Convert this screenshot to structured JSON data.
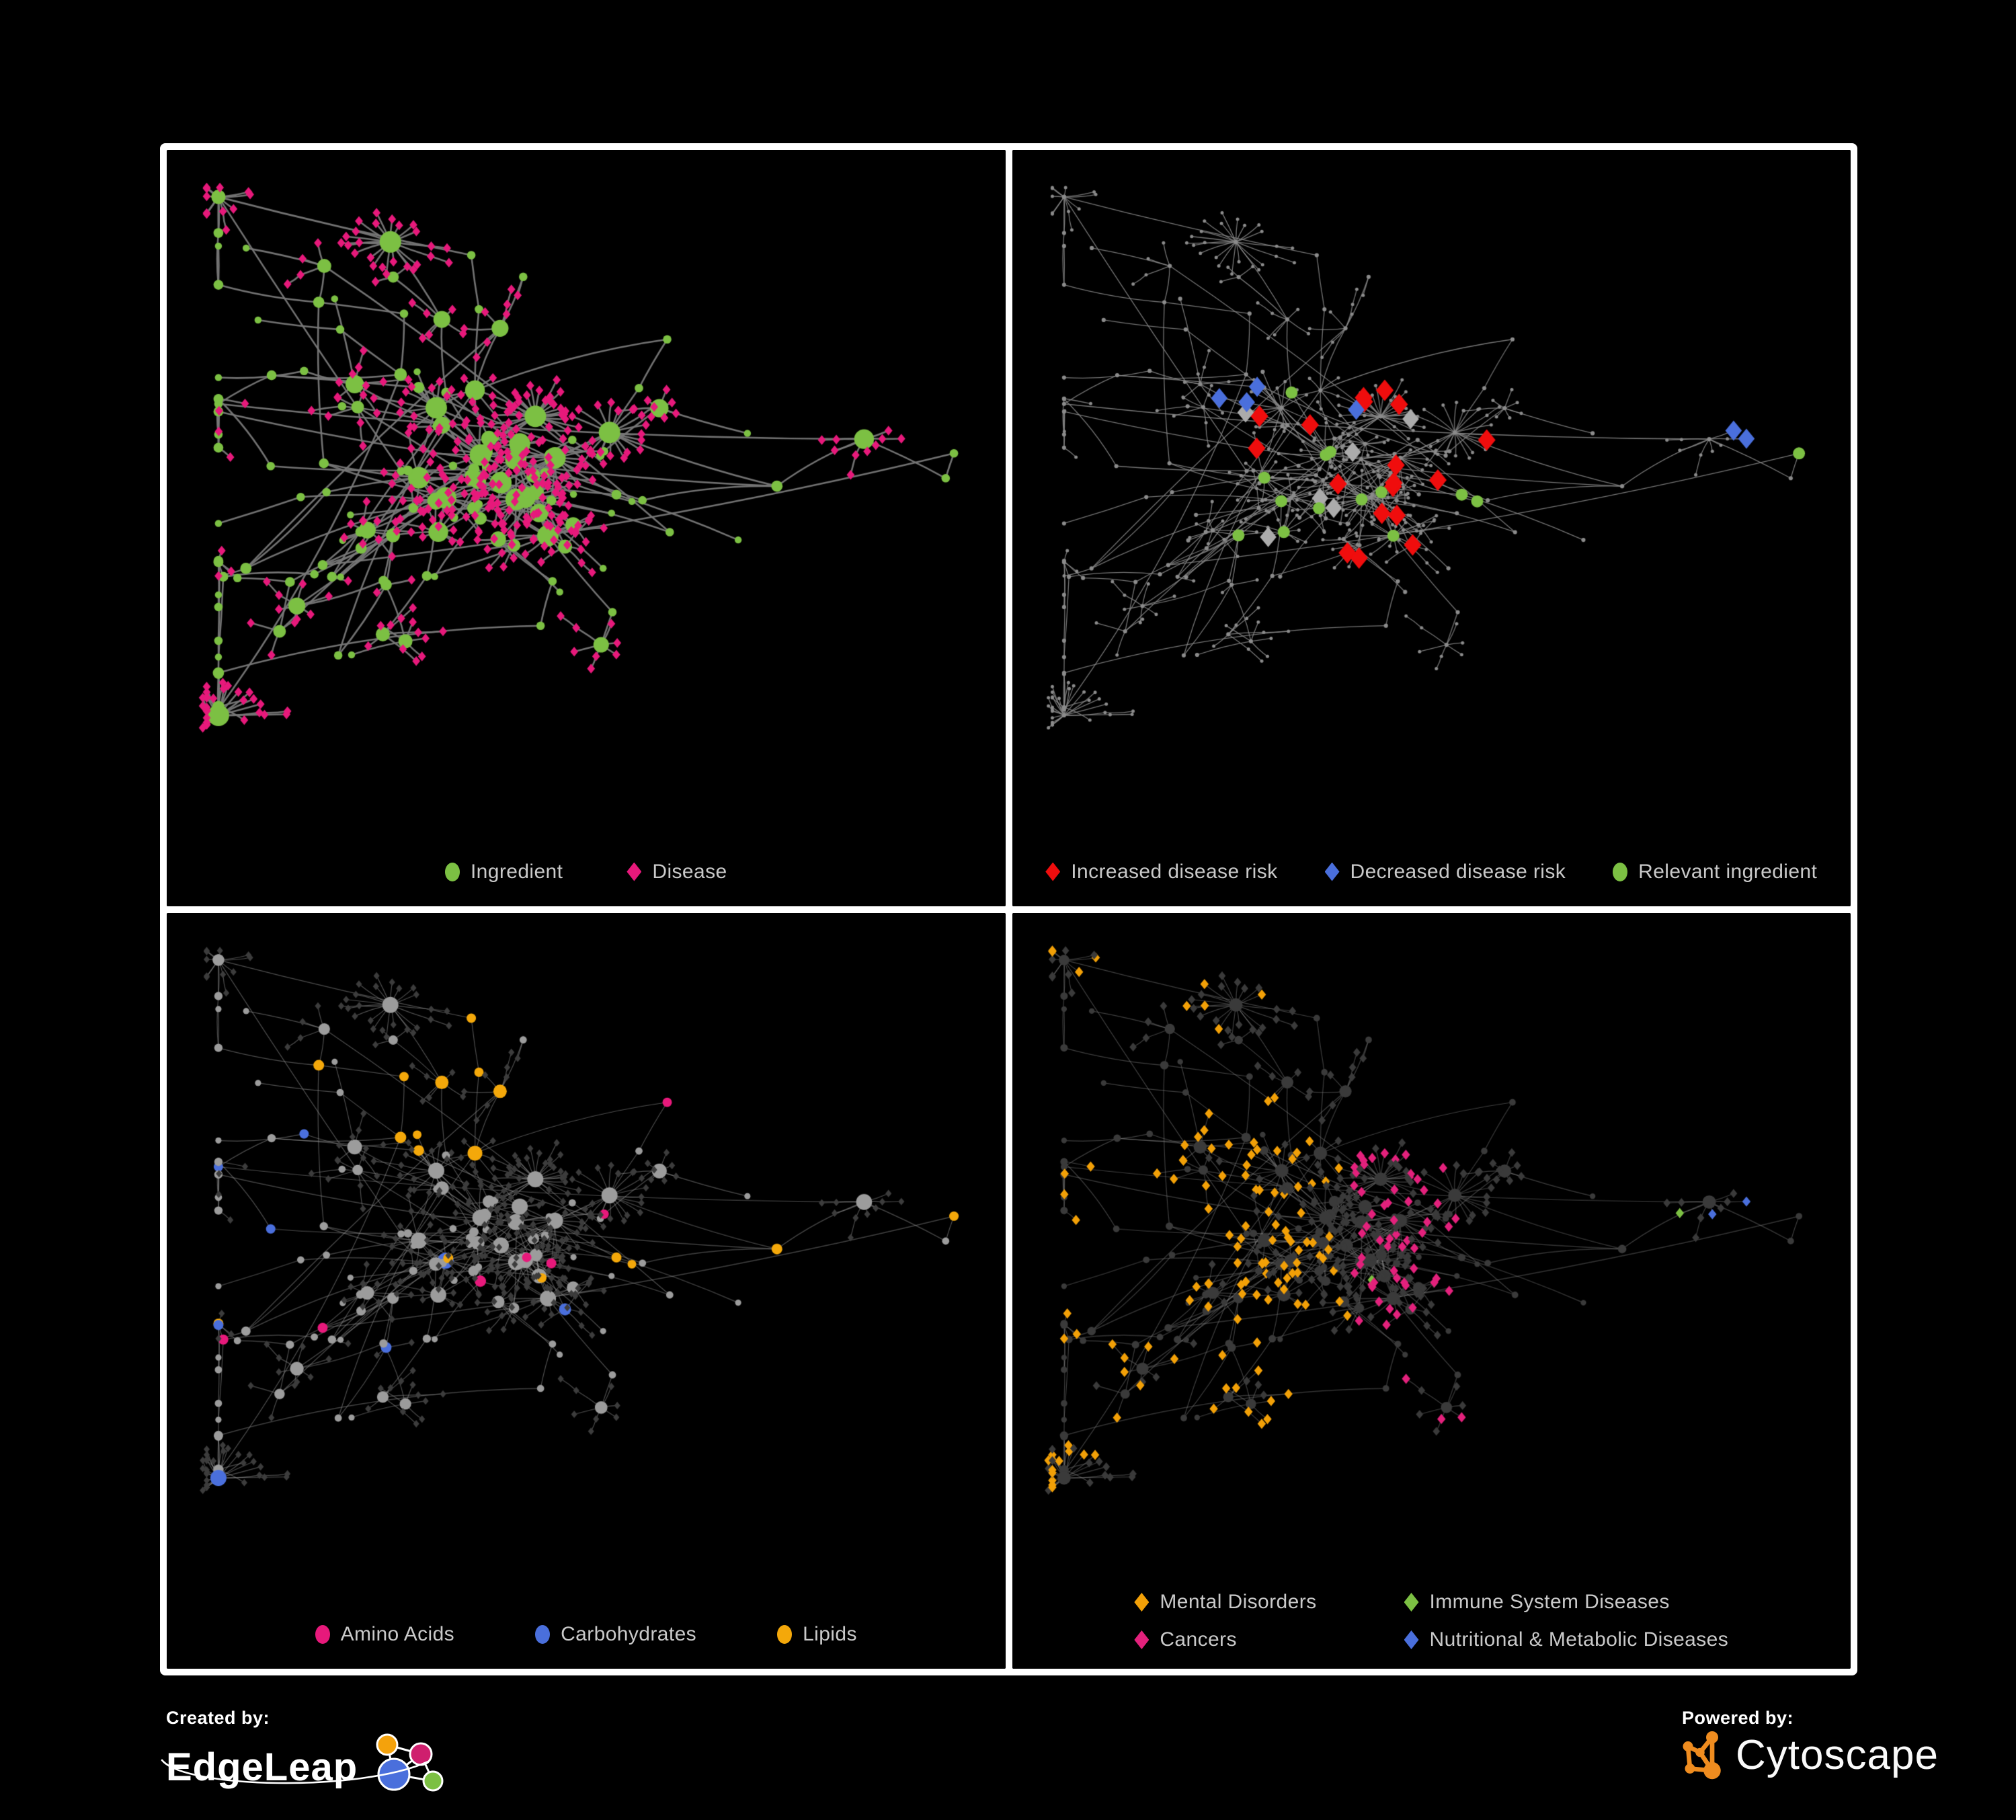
{
  "panels": [
    {
      "id": "ingredient-disease-network",
      "legend": [
        {
          "label": "Ingredient",
          "shape": "circle",
          "color": "#7cc043"
        },
        {
          "label": "Disease",
          "shape": "diamond",
          "color": "#e7197b"
        }
      ]
    },
    {
      "id": "disease-risk-network",
      "legend": [
        {
          "label": "Increased disease risk",
          "shape": "diamond",
          "color": "#f00d0d"
        },
        {
          "label": "Decreased disease risk",
          "shape": "diamond",
          "color": "#4a6fdc"
        },
        {
          "label": "Relevant ingredient",
          "shape": "circle",
          "color": "#7cc043"
        }
      ]
    },
    {
      "id": "macronutrient-network",
      "legend": [
        {
          "label": "Amino Acids",
          "shape": "circle",
          "color": "#e7197b"
        },
        {
          "label": "Carbohydrates",
          "shape": "circle",
          "color": "#4a6fdc"
        },
        {
          "label": "Lipids",
          "shape": "circle",
          "color": "#f4a80a"
        }
      ]
    },
    {
      "id": "disease-category-network",
      "legend": [
        {
          "label": "Mental Disorders",
          "shape": "diamond",
          "color": "#f2a007"
        },
        {
          "label": "Immune System Diseases",
          "shape": "diamond",
          "color": "#7cc043"
        },
        {
          "label": "Cancers",
          "shape": "diamond",
          "color": "#e3217c"
        },
        {
          "label": "Nutritional & Metabolic Diseases",
          "shape": "diamond",
          "color": "#4a6fdc"
        }
      ]
    }
  ],
  "branding": {
    "created_by": "Created by:",
    "edgeleap": "EdgeLeap",
    "powered_by": "Powered by:",
    "cytoscape": "Cytoscape",
    "edgeleap_logo_colors": {
      "orange": "#f4a20c",
      "magenta": "#cf1f6e",
      "blue": "#4a6fdc",
      "green": "#7cc043"
    },
    "cytoscape_logo_color": "#ef8c1f"
  },
  "network": {
    "seed": 20,
    "hub_count": 150,
    "leaf_count": 430,
    "background": "#000000",
    "panel_styles": {
      "ingredient_disease": {
        "edge_color": "#787878",
        "edge_width": 2.6,
        "edge_alpha": 0.95,
        "hub_color": "#7cc043",
        "leaf_color": "#e7197b",
        "leaf_size": 7.2
      },
      "disease_risk": {
        "edge_color": "#8a8a8a",
        "edge_width": 1.3,
        "edge_alpha": 0.85,
        "dim_node_color": "#8b8b8b",
        "red": "#f00d0d",
        "blue": "#4a6fdc",
        "gray": "#ababab",
        "green": "#7cc043",
        "red_count": 18,
        "blue_count": 4,
        "gray_count": 6,
        "green_count": 13
      },
      "macronutrients": {
        "edge_color": "#9a9a9a",
        "edge_width": 1.2,
        "edge_alpha": 0.5,
        "hub_color": "#9c9c9c",
        "leaf_color": "#3c3c3c",
        "amino": "#e7197b",
        "carb": "#4a6fdc",
        "lipid": "#f4a80a"
      },
      "disease_categories": {
        "edge_color": "#8a8a8a",
        "edge_width": 1.2,
        "edge_alpha": 0.45,
        "dim_node_color": "#3a3a3a",
        "mental": "#f2a007",
        "immune": "#7cc043",
        "cancer": "#e3217c",
        "metabolic": "#4a6fdc"
      }
    }
  }
}
